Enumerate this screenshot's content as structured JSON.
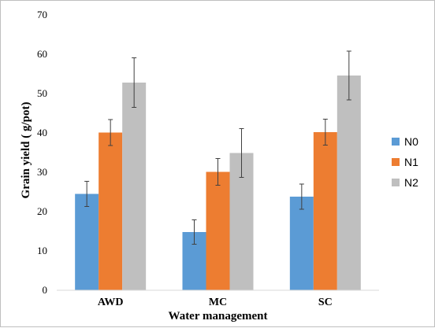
{
  "chart_data": {
    "type": "bar",
    "categories": [
      "AWD",
      "MC",
      "SC"
    ],
    "series": [
      {
        "name": "N0",
        "color": "#5b9bd5",
        "values": [
          24.5,
          14.8,
          23.8
        ],
        "errors": [
          3.2,
          3.1,
          3.2
        ]
      },
      {
        "name": "N1",
        "color": "#ed7d31",
        "values": [
          40.1,
          30.1,
          40.2
        ],
        "errors": [
          3.3,
          3.4,
          3.3
        ]
      },
      {
        "name": "N2",
        "color": "#bfbfbf",
        "values": [
          52.8,
          34.9,
          54.6
        ],
        "errors": [
          6.3,
          6.2,
          6.2
        ]
      }
    ],
    "xlabel": "Water management",
    "ylabel": "Grain yield ( g/pot)",
    "ylim": [
      0,
      70
    ],
    "yticks": [
      0,
      10,
      20,
      30,
      40,
      50,
      60,
      70
    ],
    "grid": false,
    "legend_position": "right"
  }
}
